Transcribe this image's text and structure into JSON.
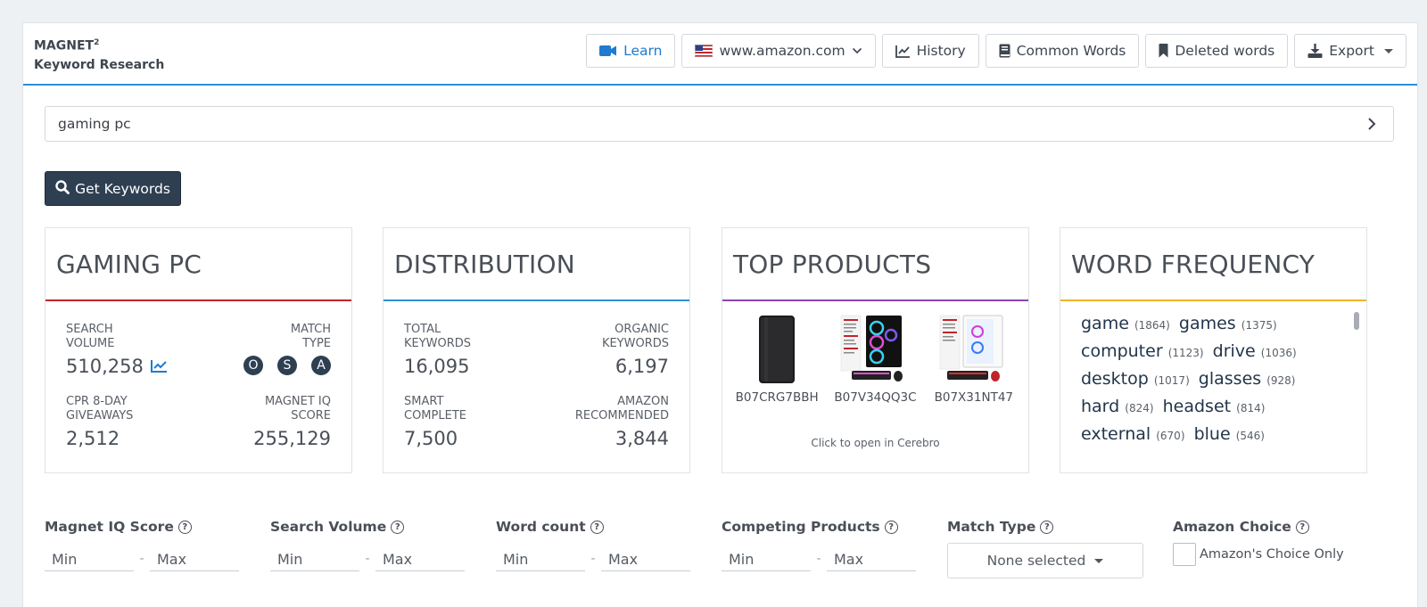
{
  "header": {
    "brand_name": "MAGNET",
    "brand_sup": "2",
    "brand_sub": "Keyword Research",
    "learn": "Learn",
    "marketplace": "www.amazon.com",
    "history": "History",
    "common_words": "Common Words",
    "deleted_words": "Deleted words",
    "export": "Export"
  },
  "search": {
    "value": "gaming pc",
    "button": "Get Keywords"
  },
  "cards": {
    "keyword": {
      "title": "GAMING PC",
      "color": "#c0242b",
      "search_volume_label": "SEARCH VOLUME",
      "search_volume": "510,258",
      "match_type_label": "MATCH TYPE",
      "match_types": [
        "O",
        "S",
        "A"
      ],
      "cpr_label": "CPR 8-DAY GIVEAWAYS",
      "cpr": "2,512",
      "iq_label": "MAGNET IQ SCORE",
      "iq": "255,129"
    },
    "distribution": {
      "title": "DISTRIBUTION",
      "color": "#2c8fd6",
      "total_label": "TOTAL KEYWORDS",
      "total": "16,095",
      "organic_label": "ORGANIC KEYWORDS",
      "organic": "6,197",
      "smart_label": "SMART COMPLETE",
      "smart": "7,500",
      "amazon_label": "AMAZON RECOMMENDED",
      "amazon": "3,844"
    },
    "top_products": {
      "title": "TOP PRODUCTS",
      "color": "#8a45b5",
      "products": [
        {
          "asin": "B07CRG7BBH",
          "icon": "external-drive-image"
        },
        {
          "asin": "B07V34QQ3C",
          "icon": "gaming-pc-image"
        },
        {
          "asin": "B07X31NT47",
          "icon": "gaming-pc-white-image"
        }
      ],
      "hint": "Click to open in Cerebro"
    },
    "word_frequency": {
      "title": "WORD FREQUENCY",
      "color": "#f0b429",
      "words": [
        {
          "word": "game",
          "count": "(1864)"
        },
        {
          "word": "games",
          "count": "(1375)"
        },
        {
          "word": "computer",
          "count": "(1123)"
        },
        {
          "word": "drive",
          "count": "(1036)"
        },
        {
          "word": "desktop",
          "count": "(1017)"
        },
        {
          "word": "glasses",
          "count": "(928)"
        },
        {
          "word": "hard",
          "count": "(824)"
        },
        {
          "word": "headset",
          "count": "(814)"
        },
        {
          "word": "external",
          "count": "(670)"
        },
        {
          "word": "blue",
          "count": "(546)"
        }
      ]
    }
  },
  "filters": {
    "iq": {
      "label": "Magnet IQ Score",
      "min": "Min",
      "max": "Max"
    },
    "volume": {
      "label": "Search Volume",
      "min": "Min",
      "max": "Max"
    },
    "word_count": {
      "label": "Word count",
      "min": "Min",
      "max": "Max"
    },
    "competing": {
      "label": "Competing Products",
      "min": "Min",
      "max": "Max"
    },
    "match_type": {
      "label": "Match Type",
      "selected": "None selected"
    },
    "amazon_choice": {
      "label": "Amazon Choice",
      "checkbox": "Amazon's Choice Only"
    }
  }
}
